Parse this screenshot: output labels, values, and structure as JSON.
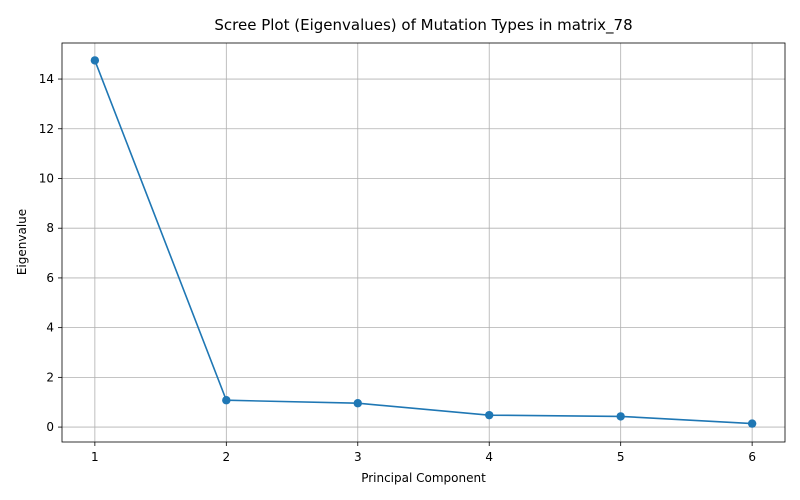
{
  "chart_data": {
    "type": "line",
    "title": "Scree Plot (Eigenvalues) of Mutation Types in matrix_78",
    "xlabel": "Principal Component",
    "ylabel": "Eigenvalue",
    "x": [
      1,
      2,
      3,
      4,
      5,
      6
    ],
    "series": [
      {
        "values": [
          14.75,
          1.08,
          0.96,
          0.48,
          0.43,
          0.14
        ]
      }
    ],
    "xticks": [
      1,
      2,
      3,
      4,
      5,
      6
    ],
    "yticks": [
      0,
      2,
      4,
      6,
      8,
      10,
      12,
      14
    ],
    "xlim": [
      0.75,
      6.25
    ],
    "ylim": [
      -0.6,
      15.45
    ],
    "grid": true,
    "line_color": "#1f77b4",
    "grid_color": "#b0b0b0"
  }
}
